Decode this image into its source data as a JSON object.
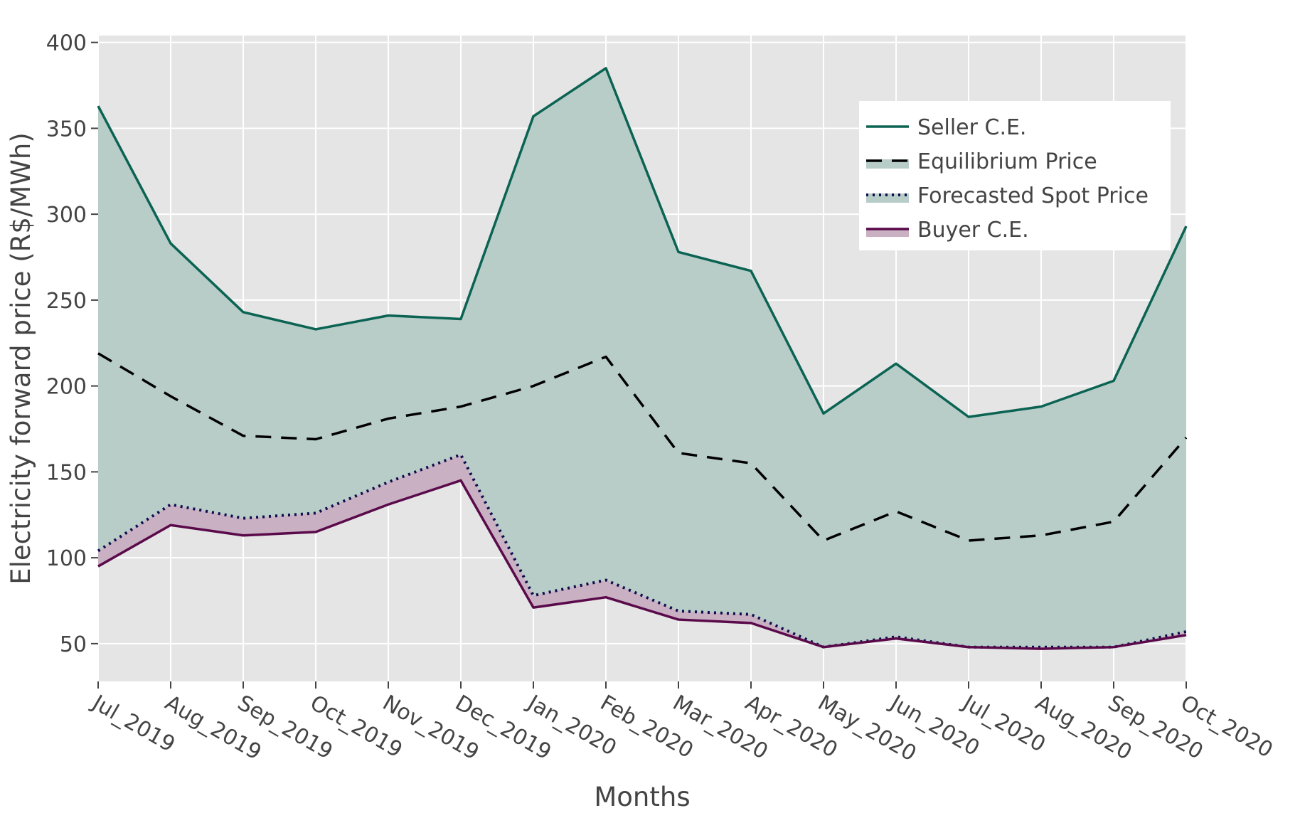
{
  "chart_data": {
    "type": "area",
    "xlabel": "Months",
    "ylabel": "Electricity forward price (R$/MWh)",
    "categories": [
      "Jul_2019",
      "Aug_2019",
      "Sep_2019",
      "Oct_2019",
      "Nov_2019",
      "Dec_2019",
      "Jan_2020",
      "Feb_2020",
      "Mar_2020",
      "Apr_2020",
      "May_2020",
      "Jun_2020",
      "Jul_2020",
      "Aug_2020",
      "Sep_2020",
      "Oct_2020"
    ],
    "yticks": [
      50,
      100,
      150,
      200,
      250,
      300,
      350,
      400
    ],
    "ylim": [
      28,
      404
    ],
    "grid": true,
    "legend_position": "top-right",
    "series": [
      {
        "name": "Seller C.E.",
        "style": "solid",
        "color": "#0b6353",
        "fill": "#b8cdc8",
        "values": [
          363,
          283,
          243,
          233,
          241,
          239,
          357,
          385,
          278,
          267,
          184,
          213,
          182,
          188,
          203,
          293
        ]
      },
      {
        "name": "Equilibrium Price",
        "style": "dash",
        "color": "#000000",
        "values": [
          219,
          194,
          171,
          169,
          181,
          188,
          200,
          217,
          161,
          155,
          110,
          127,
          110,
          113,
          121,
          170
        ]
      },
      {
        "name": "Forecasted Spot Price",
        "style": "dot",
        "color": "#0d0d4d",
        "values": [
          104,
          131,
          123,
          126,
          144,
          160,
          78,
          87,
          69,
          67,
          48,
          54,
          48,
          48,
          48,
          57
        ]
      },
      {
        "name": "Buyer C.E.",
        "style": "solid",
        "color": "#5a0a4a",
        "fill": "#c9b0c3",
        "values": [
          95,
          119,
          113,
          115,
          131,
          145,
          71,
          77,
          64,
          62,
          48,
          53,
          48,
          47,
          48,
          55
        ]
      }
    ],
    "colors": {
      "plot_background": "#e5e5e5",
      "grid": "#ffffff",
      "text": "#444444"
    }
  }
}
